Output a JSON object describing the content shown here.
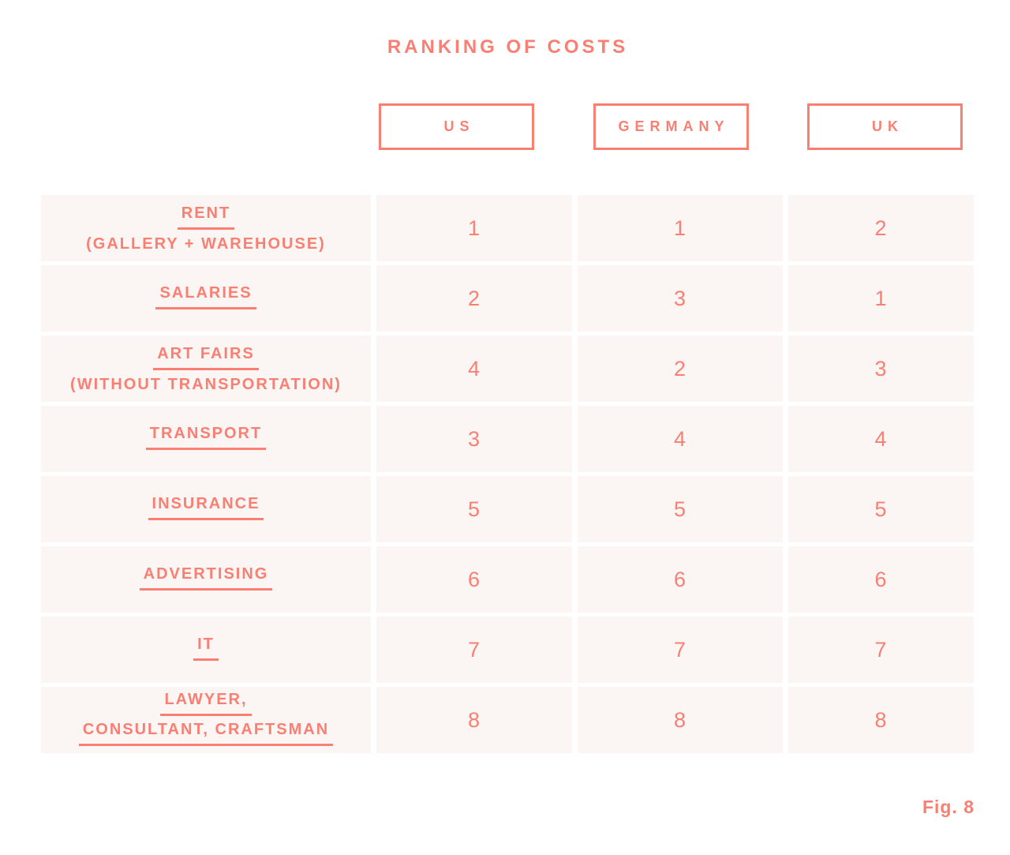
{
  "title": "RANKING OF COSTS",
  "fig_label": "Fig. 8",
  "colors": {
    "accent": "#F97F73",
    "cell_bg": "#FBF5F3",
    "header_box_fill": "#FFFFFF",
    "page_bg": "#FFFFFF"
  },
  "chart_data": {
    "type": "table",
    "title": "RANKING OF COSTS",
    "figure_label": "Fig. 8",
    "columns": [
      "US",
      "GERMANY",
      "UK"
    ],
    "rows": [
      {
        "category": "RENT (GALLERY + WAREHOUSE)",
        "label_lines": [
          {
            "text": "RENT",
            "underlined": true
          },
          {
            "text": "(GALLERY + WAREHOUSE)",
            "underlined": false
          }
        ],
        "values": [
          1,
          1,
          2
        ]
      },
      {
        "category": "SALARIES",
        "label_lines": [
          {
            "text": "SALARIES",
            "underlined": true
          }
        ],
        "values": [
          2,
          3,
          1
        ]
      },
      {
        "category": "ART FAIRS (WITHOUT TRANSPORTATION)",
        "label_lines": [
          {
            "text": "ART FAIRS",
            "underlined": true
          },
          {
            "text": "(WITHOUT TRANSPORTATION)",
            "underlined": false
          }
        ],
        "values": [
          4,
          2,
          3
        ]
      },
      {
        "category": "TRANSPORT",
        "label_lines": [
          {
            "text": "TRANSPORT",
            "underlined": true
          }
        ],
        "values": [
          3,
          4,
          4
        ]
      },
      {
        "category": "INSURANCE",
        "label_lines": [
          {
            "text": "INSURANCE",
            "underlined": true
          }
        ],
        "values": [
          5,
          5,
          5
        ]
      },
      {
        "category": "ADVERTISING",
        "label_lines": [
          {
            "text": "ADVERTISING",
            "underlined": true
          }
        ],
        "values": [
          6,
          6,
          6
        ]
      },
      {
        "category": "IT",
        "label_lines": [
          {
            "text": "IT",
            "underlined": true
          }
        ],
        "values": [
          7,
          7,
          7
        ]
      },
      {
        "category": "LAWYER, CONSULTANT, CRAFTSMAN",
        "label_lines": [
          {
            "text": "LAWYER,",
            "underlined": true
          },
          {
            "text": "CONSULTANT, CRAFTSMAN",
            "underlined": true
          }
        ],
        "values": [
          8,
          8,
          8
        ]
      }
    ]
  }
}
